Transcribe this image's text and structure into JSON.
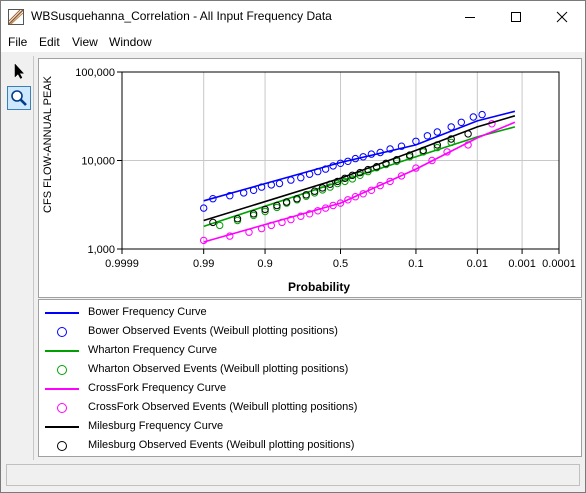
{
  "window": {
    "title": "WBSusquehanna_Correlation - All Input Frequency Data"
  },
  "menu": {
    "file": "File",
    "edit": "Edit",
    "view": "View",
    "window": "Window"
  },
  "toolbar": {
    "pointer_icon": "pointer-arrow-icon",
    "zoom_icon": "magnifier-icon"
  },
  "colors": {
    "bower": "#0000ff",
    "wharton": "#00a000",
    "crossfork": "#ff00ff",
    "milesburg": "#000000",
    "grid": "#c8c8c8",
    "selected_tool": "#cde8ff"
  },
  "chart_data": {
    "type": "scatter",
    "xlabel": "Probability",
    "ylabel": "CFS FLOW-ANNUAL PEAK",
    "y_scale": "log",
    "x_scale": "normal-probability",
    "ylim": [
      1000,
      100000
    ],
    "x_ticks": [
      "0.9999",
      "0.99",
      "0.9",
      "0.5",
      "0.1",
      "0.01",
      "0.001",
      "0.0001"
    ],
    "y_ticks": [
      "1,000",
      "10,000",
      "100,000"
    ],
    "grid": true,
    "legend_placement": "bottom",
    "series": [
      {
        "name": "Bower Frequency Curve",
        "kind": "curve",
        "color": "#0000ff",
        "line_points": [
          [
            0.99,
            3500
          ],
          [
            0.5,
            9500
          ],
          [
            0.1,
            15000
          ],
          [
            0.01,
            28000
          ],
          [
            0.0015,
            36000
          ]
        ]
      },
      {
        "name": "Bower Observed Events (Weibull plotting positions)",
        "kind": "points",
        "color": "#0000ff",
        "points": [
          [
            0.99,
            2900
          ],
          [
            0.985,
            3700
          ],
          [
            0.97,
            4000
          ],
          [
            0.95,
            4300
          ],
          [
            0.93,
            4600
          ],
          [
            0.91,
            5000
          ],
          [
            0.88,
            5300
          ],
          [
            0.85,
            5500
          ],
          [
            0.8,
            6000
          ],
          [
            0.75,
            6400
          ],
          [
            0.7,
            7000
          ],
          [
            0.65,
            7500
          ],
          [
            0.6,
            8000
          ],
          [
            0.55,
            8700
          ],
          [
            0.5,
            9300
          ],
          [
            0.45,
            9800
          ],
          [
            0.4,
            10500
          ],
          [
            0.35,
            11000
          ],
          [
            0.3,
            11800
          ],
          [
            0.25,
            12300
          ],
          [
            0.2,
            13500
          ],
          [
            0.15,
            14500
          ],
          [
            0.1,
            16500
          ],
          [
            0.07,
            19000
          ],
          [
            0.05,
            21000
          ],
          [
            0.03,
            24000
          ],
          [
            0.02,
            27000
          ],
          [
            0.012,
            31000
          ],
          [
            0.008,
            33000
          ]
        ]
      },
      {
        "name": "Wharton Frequency Curve",
        "kind": "curve",
        "color": "#00a000",
        "line_points": [
          [
            0.99,
            1800
          ],
          [
            0.5,
            5800
          ],
          [
            0.1,
            11000
          ],
          [
            0.01,
            18500
          ],
          [
            0.0015,
            24000
          ]
        ]
      },
      {
        "name": "Wharton Observed Events (Weibull plotting positions)",
        "kind": "points",
        "color": "#00a000",
        "points": [
          [
            0.98,
            1850
          ],
          [
            0.96,
            2100
          ],
          [
            0.93,
            2400
          ],
          [
            0.9,
            2650
          ],
          [
            0.86,
            2950
          ],
          [
            0.82,
            3300
          ],
          [
            0.77,
            3600
          ],
          [
            0.72,
            3950
          ],
          [
            0.67,
            4300
          ],
          [
            0.62,
            4650
          ],
          [
            0.57,
            5000
          ],
          [
            0.52,
            5500
          ],
          [
            0.47,
            5800
          ],
          [
            0.42,
            6200
          ],
          [
            0.37,
            6800
          ],
          [
            0.32,
            7500
          ],
          [
            0.27,
            8300
          ],
          [
            0.22,
            9000
          ],
          [
            0.17,
            9800
          ],
          [
            0.12,
            11000
          ],
          [
            0.08,
            12500
          ],
          [
            0.05,
            14000
          ],
          [
            0.03,
            16000
          ]
        ]
      },
      {
        "name": "CrossFork Frequency Curve",
        "kind": "curve",
        "color": "#ff00ff",
        "line_points": [
          [
            0.99,
            1200
          ],
          [
            0.5,
            3300
          ],
          [
            0.1,
            8000
          ],
          [
            0.01,
            18000
          ],
          [
            0.0015,
            27000
          ]
        ]
      },
      {
        "name": "CrossFork Observed Events (Weibull plotting positions)",
        "kind": "points",
        "color": "#ff00ff",
        "points": [
          [
            0.99,
            1250
          ],
          [
            0.97,
            1400
          ],
          [
            0.94,
            1550
          ],
          [
            0.91,
            1700
          ],
          [
            0.88,
            1850
          ],
          [
            0.84,
            2000
          ],
          [
            0.8,
            2150
          ],
          [
            0.75,
            2350
          ],
          [
            0.7,
            2500
          ],
          [
            0.65,
            2700
          ],
          [
            0.6,
            2900
          ],
          [
            0.55,
            3100
          ],
          [
            0.5,
            3300
          ],
          [
            0.45,
            3600
          ],
          [
            0.4,
            3900
          ],
          [
            0.35,
            4200
          ],
          [
            0.3,
            4600
          ],
          [
            0.25,
            5200
          ],
          [
            0.2,
            5800
          ],
          [
            0.15,
            6700
          ],
          [
            0.1,
            8200
          ],
          [
            0.06,
            10000
          ],
          [
            0.035,
            12500
          ],
          [
            0.015,
            15000
          ],
          [
            0.005,
            26000
          ]
        ]
      },
      {
        "name": "Milesburg Frequency Curve",
        "kind": "curve",
        "color": "#000000",
        "line_points": [
          [
            0.99,
            2100
          ],
          [
            0.5,
            6300
          ],
          [
            0.1,
            13000
          ],
          [
            0.01,
            24000
          ],
          [
            0.0015,
            32000
          ]
        ]
      },
      {
        "name": "Milesburg Observed Events (Weibull plotting positions)",
        "kind": "points",
        "color": "#000000",
        "points": [
          [
            0.985,
            2000
          ],
          [
            0.96,
            2200
          ],
          [
            0.93,
            2500
          ],
          [
            0.9,
            2800
          ],
          [
            0.86,
            3100
          ],
          [
            0.82,
            3400
          ],
          [
            0.77,
            3700
          ],
          [
            0.72,
            4100
          ],
          [
            0.67,
            4500
          ],
          [
            0.62,
            4900
          ],
          [
            0.57,
            5400
          ],
          [
            0.52,
            5800
          ],
          [
            0.47,
            6300
          ],
          [
            0.42,
            6800
          ],
          [
            0.37,
            7300
          ],
          [
            0.32,
            7900
          ],
          [
            0.27,
            8500
          ],
          [
            0.22,
            9300
          ],
          [
            0.17,
            10200
          ],
          [
            0.12,
            11500
          ],
          [
            0.08,
            13000
          ],
          [
            0.05,
            15000
          ],
          [
            0.03,
            17500
          ],
          [
            0.015,
            20000
          ]
        ]
      }
    ]
  },
  "legend": [
    {
      "label": "Bower Frequency Curve",
      "kind": "line",
      "color": "#0000ff"
    },
    {
      "label": "Bower Observed Events (Weibull plotting positions)",
      "kind": "marker",
      "color": "#0000ff"
    },
    {
      "label": "Wharton Frequency Curve",
      "kind": "line",
      "color": "#00a000"
    },
    {
      "label": "Wharton Observed Events (Weibull plotting positions)",
      "kind": "marker",
      "color": "#00a000"
    },
    {
      "label": "CrossFork Frequency Curve",
      "kind": "line",
      "color": "#ff00ff"
    },
    {
      "label": "CrossFork Observed Events (Weibull plotting positions)",
      "kind": "marker",
      "color": "#ff00ff"
    },
    {
      "label": "Milesburg Frequency Curve",
      "kind": "line",
      "color": "#000000"
    },
    {
      "label": "Milesburg Observed Events (Weibull plotting positions)",
      "kind": "marker",
      "color": "#000000"
    }
  ],
  "status": {
    "text": ""
  }
}
